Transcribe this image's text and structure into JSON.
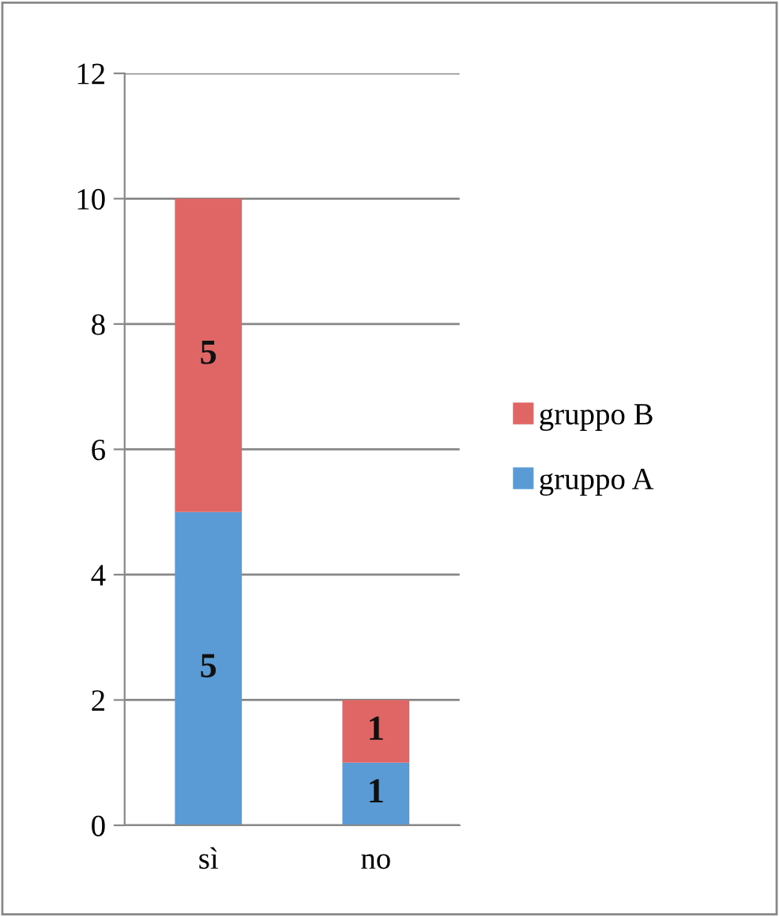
{
  "chart_data": {
    "type": "bar",
    "stacked": true,
    "categories": [
      "sì",
      "no"
    ],
    "series": [
      {
        "name": "gruppo A",
        "color": "#5b9bd5",
        "values": [
          5,
          1
        ]
      },
      {
        "name": "gruppo B",
        "color": "#e06666",
        "values": [
          5,
          1
        ]
      }
    ],
    "ylim": [
      0,
      12
    ],
    "yticks": [
      0,
      2,
      4,
      6,
      8,
      10,
      12
    ],
    "grid": "y",
    "legend": "right",
    "data_labels": true
  }
}
